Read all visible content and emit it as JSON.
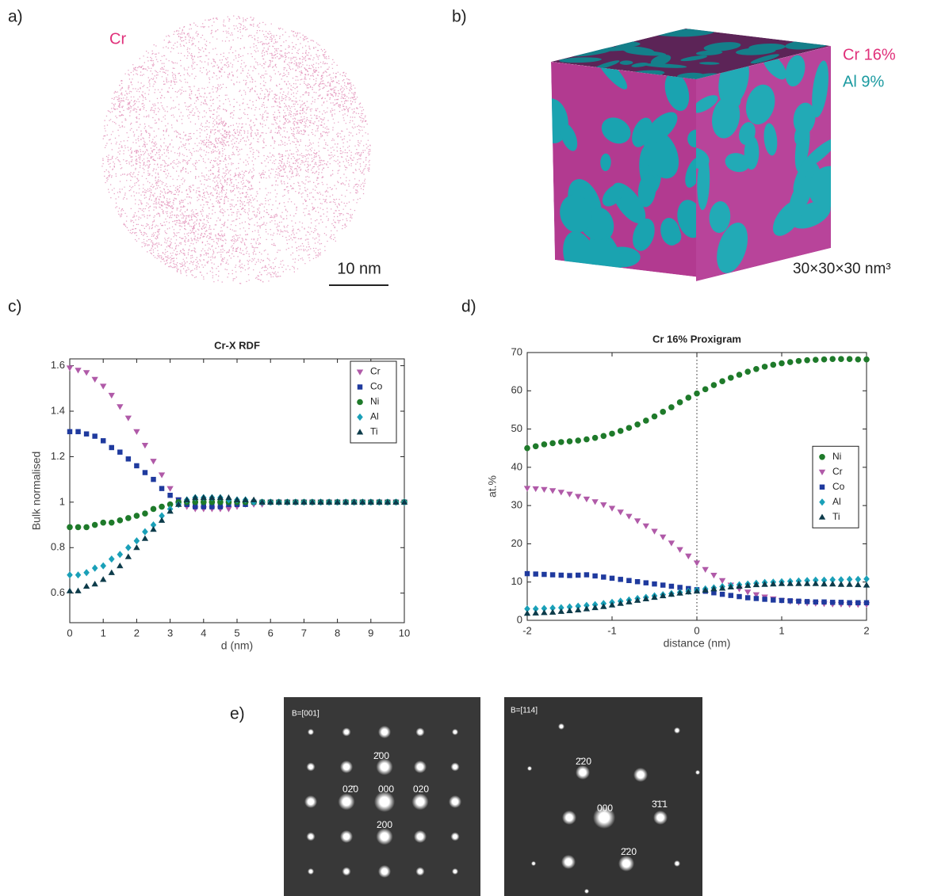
{
  "panel_labels": [
    "a)",
    "b)",
    "c)",
    "d)",
    "e)"
  ],
  "panel_a": {
    "element": "Cr",
    "scale_bar": "10 nm"
  },
  "panel_b": {
    "isosurfaces": [
      "Cr 16%",
      "Al 9%"
    ],
    "volume": "30×30×30 nm³"
  },
  "panel_e": {
    "patterns": [
      {
        "zone": "B=[001]",
        "spots": [
          "2̄00",
          "02̄0",
          "000",
          "020",
          "200"
        ]
      },
      {
        "zone": "B=[114]",
        "spots": [
          "2̄20",
          "000",
          "3̄1̄1",
          "2̄20"
        ]
      }
    ]
  },
  "chart_data": [
    {
      "type": "scatter",
      "title": "Cr-X RDF",
      "xlabel": "d (nm)",
      "ylabel": "Bulk normalised",
      "x": [
        0,
        0.25,
        0.5,
        0.75,
        1,
        1.25,
        1.5,
        1.75,
        2,
        2.25,
        2.5,
        2.75,
        3,
        3.25,
        3.5,
        3.75,
        4,
        4.25,
        4.5,
        4.75,
        5,
        5.25,
        5.5,
        5.75,
        6,
        6.25,
        6.5,
        6.75,
        7,
        7.25,
        7.5,
        7.75,
        8,
        8.25,
        8.5,
        8.75,
        9,
        9.25,
        9.5,
        9.75,
        10
      ],
      "series": [
        {
          "name": "Cr",
          "color": "#b05aa8",
          "marker": "triangle-down",
          "values": [
            1.59,
            1.58,
            1.57,
            1.54,
            1.51,
            1.47,
            1.42,
            1.37,
            1.31,
            1.25,
            1.18,
            1.12,
            1.06,
            1.01,
            0.98,
            0.97,
            0.97,
            0.97,
            0.97,
            0.97,
            0.98,
            0.99,
            0.99,
            0.99,
            1,
            1,
            1,
            1,
            1,
            1,
            1,
            1,
            1,
            1,
            1,
            1,
            1,
            1,
            1,
            1,
            1
          ]
        },
        {
          "name": "Co",
          "color": "#1f3a9e",
          "marker": "square",
          "values": [
            1.31,
            1.31,
            1.3,
            1.29,
            1.27,
            1.24,
            1.22,
            1.19,
            1.16,
            1.13,
            1.1,
            1.06,
            1.03,
            1.01,
            0.99,
            0.98,
            0.98,
            0.98,
            0.98,
            0.99,
            0.99,
            0.99,
            1,
            1,
            1,
            1,
            1,
            1,
            1,
            1,
            1,
            1,
            1,
            1,
            1,
            1,
            1,
            1,
            1,
            1,
            1
          ]
        },
        {
          "name": "Ni",
          "color": "#1e7a2a",
          "marker": "circle",
          "values": [
            0.89,
            0.89,
            0.89,
            0.9,
            0.91,
            0.91,
            0.92,
            0.93,
            0.94,
            0.95,
            0.97,
            0.98,
            0.99,
            1,
            1,
            1,
            1,
            1,
            1,
            1,
            1,
            1,
            1,
            1,
            1,
            1,
            1,
            1,
            1,
            1,
            1,
            1,
            1,
            1,
            1,
            1,
            1,
            1,
            1,
            1,
            1
          ]
        },
        {
          "name": "Al",
          "color": "#1aa0b8",
          "marker": "diamond",
          "values": [
            0.68,
            0.68,
            0.69,
            0.71,
            0.72,
            0.75,
            0.77,
            0.8,
            0.83,
            0.87,
            0.9,
            0.94,
            0.97,
            0.99,
            1.01,
            1.02,
            1.02,
            1.02,
            1.02,
            1.01,
            1.01,
            1.01,
            1,
            1,
            1,
            1,
            1,
            1,
            1,
            1,
            1,
            1,
            1,
            1,
            1,
            1,
            1,
            1,
            1,
            1,
            1
          ]
        },
        {
          "name": "Ti",
          "color": "#0d3b4a",
          "marker": "triangle-up",
          "values": [
            0.61,
            0.61,
            0.63,
            0.64,
            0.66,
            0.69,
            0.72,
            0.76,
            0.8,
            0.84,
            0.88,
            0.92,
            0.96,
            0.99,
            1.01,
            1.02,
            1.02,
            1.02,
            1.02,
            1.02,
            1.01,
            1.01,
            1.01,
            1,
            1,
            1,
            1,
            1,
            1,
            1,
            1,
            1,
            1,
            1,
            1,
            1,
            1,
            1,
            1,
            1,
            1
          ]
        }
      ],
      "xlim": [
        0,
        10
      ],
      "xticks": [
        0,
        1,
        2,
        3,
        4,
        5,
        6,
        7,
        8,
        9,
        10
      ],
      "ylim": [
        0.47,
        1.63
      ],
      "yticks": [
        0.6,
        0.8,
        1,
        1.2,
        1.4,
        1.6
      ],
      "grid": false,
      "legend": "upper right"
    },
    {
      "type": "scatter",
      "title": "Cr 16% Proxigram",
      "xlabel": "distance (nm)",
      "ylabel": "at.%",
      "x": [
        -2,
        -1.9,
        -1.8,
        -1.7,
        -1.6,
        -1.5,
        -1.4,
        -1.3,
        -1.2,
        -1.1,
        -1,
        -0.9,
        -0.8,
        -0.7,
        -0.6,
        -0.5,
        -0.4,
        -0.3,
        -0.2,
        -0.1,
        0,
        0.1,
        0.2,
        0.3,
        0.4,
        0.5,
        0.6,
        0.7,
        0.8,
        0.9,
        1,
        1.1,
        1.2,
        1.3,
        1.4,
        1.5,
        1.6,
        1.7,
        1.8,
        1.9,
        2
      ],
      "series": [
        {
          "name": "Ni",
          "color": "#1e7a2a",
          "marker": "circle",
          "values": [
            45,
            45.5,
            46,
            46.3,
            46.6,
            46.8,
            47,
            47.3,
            47.7,
            48.2,
            48.8,
            49.5,
            50.3,
            51.2,
            52.2,
            53.3,
            54.5,
            55.7,
            57,
            58.2,
            59.3,
            60.4,
            61.5,
            62.5,
            63.4,
            64.2,
            65,
            65.7,
            66.3,
            66.8,
            67.2,
            67.5,
            67.8,
            68,
            68.1,
            68.2,
            68.3,
            68.3,
            68.3,
            68.2,
            68.2
          ]
        },
        {
          "name": "Cr",
          "color": "#b05aa8",
          "marker": "triangle-down",
          "values": [
            34.5,
            34.4,
            34.2,
            33.9,
            33.5,
            33,
            32.4,
            31.7,
            31,
            30.2,
            29.3,
            28.3,
            27.2,
            26,
            24.7,
            23.3,
            21.8,
            20.2,
            18.5,
            16.8,
            15,
            13.3,
            11.8,
            10.4,
            9.2,
            8.2,
            7.4,
            6.7,
            6.1,
            5.6,
            5.2,
            4.9,
            4.7,
            4.5,
            4.4,
            4.3,
            4.2,
            4.2,
            4.1,
            4.1,
            4.1
          ]
        },
        {
          "name": "Co",
          "color": "#1f3a9e",
          "marker": "square",
          "values": [
            12.2,
            12.1,
            12,
            11.9,
            11.8,
            11.7,
            11.8,
            11.9,
            11.6,
            11.3,
            11,
            10.7,
            10.4,
            10.1,
            9.8,
            9.5,
            9.2,
            8.9,
            8.6,
            8.3,
            8,
            7.6,
            7.2,
            6.8,
            6.5,
            6.2,
            5.9,
            5.7,
            5.5,
            5.3,
            5.2,
            5.1,
            5,
            4.9,
            4.8,
            4.8,
            4.7,
            4.7,
            4.6,
            4.6,
            4.6
          ]
        },
        {
          "name": "Al",
          "color": "#1aa0b8",
          "marker": "diamond",
          "values": [
            3,
            3,
            3.1,
            3.2,
            3.3,
            3.5,
            3.7,
            3.9,
            4.1,
            4.4,
            4.7,
            5,
            5.3,
            5.7,
            6,
            6.4,
            6.7,
            7,
            7.3,
            7.6,
            7.9,
            8.2,
            8.5,
            8.8,
            9.1,
            9.3,
            9.5,
            9.7,
            9.9,
            10,
            10.1,
            10.2,
            10.3,
            10.4,
            10.5,
            10.5,
            10.6,
            10.6,
            10.7,
            10.7,
            10.8
          ]
        },
        {
          "name": "Ti",
          "color": "#0d3b4a",
          "marker": "triangle-up",
          "values": [
            1.8,
            1.9,
            2,
            2.1,
            2.3,
            2.5,
            2.7,
            3,
            3.3,
            3.6,
            4,
            4.4,
            4.8,
            5.2,
            5.6,
            6,
            6.4,
            6.8,
            7.1,
            7.4,
            7.6,
            7.9,
            8.2,
            8.4,
            8.7,
            8.9,
            9.1,
            9.3,
            9.4,
            9.5,
            9.6,
            9.6,
            9.6,
            9.6,
            9.6,
            9.5,
            9.5,
            9.4,
            9.4,
            9.3,
            9.2
          ]
        }
      ],
      "xlim": [
        -2,
        2
      ],
      "xticks": [
        -2,
        -1,
        0,
        1,
        2
      ],
      "ylim": [
        0,
        70
      ],
      "yticks": [
        0,
        10,
        20,
        30,
        40,
        50,
        60,
        70
      ],
      "vline": 0,
      "grid": false,
      "legend": "right"
    }
  ]
}
